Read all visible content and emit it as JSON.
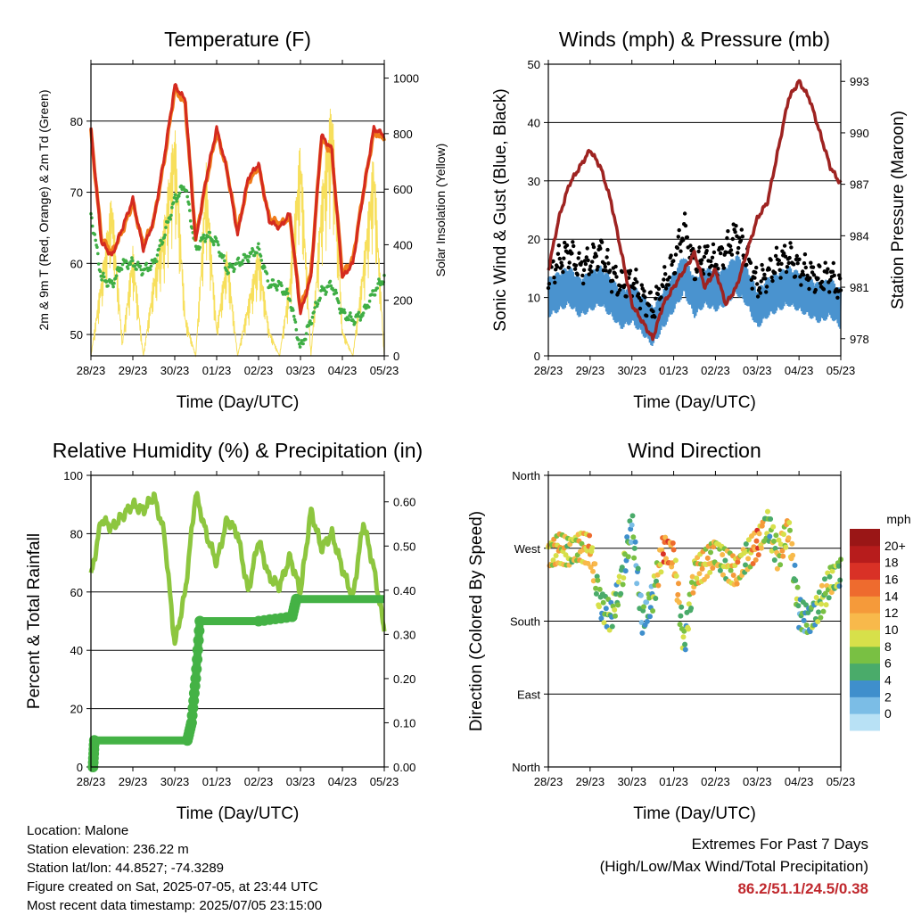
{
  "x_ticks": [
    "28/23",
    "29/23",
    "30/23",
    "01/23",
    "02/23",
    "03/23",
    "04/23",
    "05/23"
  ],
  "colors": {
    "t2m": "#d42a1f",
    "t9m": "#f07d1b",
    "td": "#3fae45",
    "solar": "#f7df5c",
    "wind": "#4a93cf",
    "gust": "#000000",
    "pressure": "#9e2321",
    "rh": "#8dc63f",
    "precip": "#44b245",
    "extreme": "#c0282d"
  },
  "chart_data": [
    {
      "id": "temperature",
      "type": "line",
      "title": "Temperature (F)",
      "xlabel": "Time (Day/UTC)",
      "ylabel": "2m & 9m T (Red, Orange) & 2m Td (Green)",
      "ylabel_right": "Solar Insolation (Yellow)",
      "ylim": [
        47,
        88
      ],
      "yticks": [
        50,
        60,
        70,
        80
      ],
      "ylim_right": [
        0,
        1050
      ],
      "yticks_right": [
        0,
        200,
        400,
        600,
        800,
        1000
      ],
      "x": [
        0,
        0.25,
        0.5,
        0.75,
        1,
        1.25,
        1.5,
        1.75,
        2,
        2.25,
        2.5,
        2.75,
        3,
        3.25,
        3.5,
        3.75,
        4,
        4.25,
        4.5,
        4.75,
        5,
        5.25,
        5.5,
        5.75,
        6,
        6.25,
        6.5,
        6.75,
        7
      ],
      "series": [
        {
          "key": "t2m",
          "values": [
            79,
            63,
            61,
            65,
            69,
            62,
            66,
            75,
            85,
            83,
            63,
            72,
            79,
            73,
            64,
            72,
            74,
            66,
            65,
            67,
            53,
            58,
            78,
            76,
            58,
            60,
            70,
            79,
            78
          ]
        },
        {
          "key": "t9m",
          "values": [
            78.5,
            63.5,
            61.5,
            64.5,
            68.5,
            62.5,
            66,
            74.5,
            84.5,
            82.5,
            63.5,
            71.5,
            78.5,
            73,
            64.5,
            71.5,
            73.5,
            66.5,
            65.5,
            66.5,
            53.5,
            58.5,
            77.5,
            75.5,
            58.5,
            60.5,
            70,
            78.5,
            77.5
          ]
        },
        {
          "key": "td",
          "values": [
            67,
            58,
            57,
            60,
            60,
            59,
            60,
            64,
            69,
            71,
            62,
            64,
            63,
            59,
            60,
            61,
            62,
            57,
            57,
            55,
            48,
            52,
            56,
            57,
            53,
            52,
            53,
            56,
            58
          ]
        },
        {
          "key": "solar",
          "values": [
            0,
            300,
            600,
            50,
            400,
            0,
            300,
            500,
            850,
            150,
            0,
            700,
            100,
            400,
            0,
            200,
            400,
            100,
            0,
            300,
            800,
            0,
            600,
            950,
            100,
            0,
            350,
            750,
            0
          ]
        }
      ]
    },
    {
      "id": "winds",
      "type": "scatter",
      "title": "Winds (mph) & Pressure (mb)",
      "xlabel": "Time (Day/UTC)",
      "ylabel": "Sonic Wind & Gust (Blue, Black)",
      "ylabel_right": "Station Pressure (Maroon)",
      "ylim": [
        0,
        50
      ],
      "yticks": [
        0,
        10,
        20,
        30,
        40,
        50
      ],
      "ylim_right": [
        977,
        994
      ],
      "yticks_right": [
        978,
        981,
        984,
        987,
        990,
        993
      ],
      "x": [
        0,
        0.25,
        0.5,
        0.75,
        1,
        1.25,
        1.5,
        1.75,
        2,
        2.25,
        2.5,
        2.75,
        3,
        3.25,
        3.5,
        3.75,
        4,
        4.25,
        4.5,
        4.75,
        5,
        5.25,
        5.5,
        5.75,
        6,
        6.25,
        6.5,
        6.75,
        7
      ],
      "series": [
        {
          "key": "wind",
          "values": [
            10,
            11,
            12,
            10,
            11,
            12,
            10,
            8,
            9,
            7,
            5,
            8,
            11,
            14,
            10,
            12,
            11,
            12,
            14,
            12,
            8,
            10,
            11,
            12,
            11,
            10,
            9,
            10,
            8
          ]
        },
        {
          "key": "gust",
          "values": [
            14,
            16,
            18,
            15,
            16,
            18,
            14,
            12,
            13,
            10,
            8,
            12,
            16,
            22,
            15,
            17,
            16,
            18,
            21,
            17,
            12,
            14,
            16,
            17,
            15,
            14,
            13,
            14,
            11
          ]
        },
        {
          "key": "pressure",
          "values": [
            982,
            985,
            987,
            988,
            989,
            988,
            986,
            983,
            980,
            979,
            978,
            980,
            981,
            982,
            983,
            981,
            982,
            980,
            981,
            983,
            985,
            986,
            989,
            992,
            993,
            992,
            990,
            988,
            987
          ]
        }
      ]
    },
    {
      "id": "humidity",
      "type": "line",
      "title": "Relative Humidity (%) & Precipitation (in)",
      "xlabel": "Time (Day/UTC)",
      "ylabel": "Percent & Total Rainfall",
      "ylim": [
        0,
        100
      ],
      "yticks": [
        0,
        20,
        40,
        60,
        80,
        100
      ],
      "ylim_right": [
        0,
        0.66
      ],
      "yticks_right": [
        "0.00",
        "0.10",
        "0.20",
        "0.30",
        "0.40",
        "0.50",
        "0.60"
      ],
      "x": [
        0,
        0.25,
        0.5,
        0.75,
        1,
        1.25,
        1.5,
        1.75,
        2,
        2.25,
        2.5,
        2.75,
        3,
        3.25,
        3.5,
        3.75,
        4,
        4.25,
        4.5,
        4.75,
        5,
        5.25,
        5.5,
        5.75,
        6,
        6.25,
        6.5,
        6.75,
        7
      ],
      "series": [
        {
          "key": "rh",
          "values": [
            65,
            85,
            82,
            86,
            90,
            88,
            93,
            80,
            42,
            60,
            94,
            80,
            70,
            85,
            80,
            60,
            78,
            65,
            62,
            72,
            60,
            88,
            75,
            80,
            68,
            58,
            84,
            68,
            47
          ]
        },
        {
          "key": "precip",
          "x": [
            0,
            0.05,
            0.08,
            0.2,
            1.5,
            2.3,
            2.4,
            2.5,
            2.6,
            2.8,
            4,
            4.8,
            4.9,
            5,
            6,
            7
          ],
          "values": [
            0,
            0,
            0.06,
            0.06,
            0.06,
            0.06,
            0.1,
            0.2,
            0.33,
            0.33,
            0.33,
            0.34,
            0.38,
            0.38,
            0.38,
            0.38
          ]
        }
      ]
    },
    {
      "id": "direction",
      "type": "scatter",
      "title": "Wind Direction",
      "xlabel": "Time (Day/UTC)",
      "ylabel": "Direction (Colored By Speed)",
      "ylim": [
        0,
        360
      ],
      "yticks": [
        "North",
        "East",
        "South",
        "West",
        "North"
      ],
      "colorbar": {
        "title": "mph",
        "labels": [
          "0",
          "2",
          "4",
          "6",
          "8",
          "10",
          "12",
          "14",
          "16",
          "18",
          "20+"
        ],
        "colors": [
          "#b8e1f5",
          "#7bbde6",
          "#3f8fcc",
          "#4aab6a",
          "#79c043",
          "#d7e04a",
          "#f8b94b",
          "#f59a3a",
          "#ee6b2e",
          "#d93126",
          "#b71c1c",
          "#9a1616"
        ]
      },
      "x": [
        0,
        0.25,
        0.5,
        0.75,
        1,
        1.25,
        1.5,
        1.75,
        2,
        2.25,
        2.5,
        2.75,
        3,
        3.25,
        3.5,
        3.75,
        4,
        4.25,
        4.5,
        4.75,
        5,
        5.25,
        5.5,
        5.75,
        6,
        6.25,
        6.5,
        6.75,
        7
      ],
      "series": [
        {
          "name": "direction",
          "values": [
            260,
            270,
            265,
            272,
            268,
            200,
            185,
            230,
            300,
            180,
            210,
            270,
            260,
            150,
            240,
            250,
            265,
            250,
            240,
            260,
            275,
            300,
            260,
            295,
            190,
            180,
            200,
            230,
            240
          ]
        },
        {
          "name": "speed",
          "values": [
            10,
            12,
            9,
            11,
            13,
            6,
            7,
            8,
            5,
            4,
            6,
            15,
            14,
            6,
            11,
            12,
            10,
            9,
            13,
            8,
            16,
            7,
            10,
            12,
            5,
            6,
            8,
            9,
            7
          ]
        }
      ]
    }
  ],
  "info": {
    "location": "Location: Malone",
    "elevation": "Station elevation: 236.22 m",
    "latlon": "Station lat/lon: 44.8527; -74.3289",
    "created": "Figure created on Sat, 2025-07-05, at 23:44 UTC",
    "timestamp": "Most recent data timestamp: 2025/07/05 23:15:00"
  },
  "extremes": {
    "heading": "Extremes For Past 7 Days",
    "subheading": "(High/Low/Max Wind/Total Precipitation)",
    "values": "86.2/51.1/24.5/0.38"
  }
}
